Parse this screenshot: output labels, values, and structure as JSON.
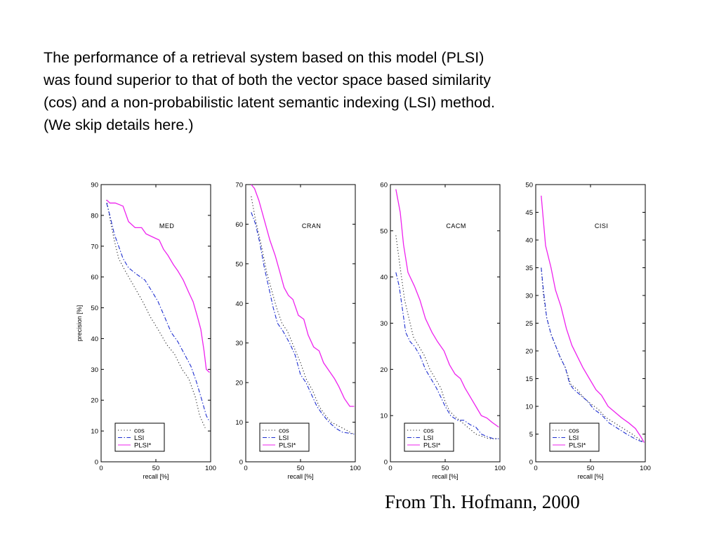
{
  "slide": {
    "paragraph": [
      "The performance of a retrieval system based on this model (PLSI)",
      "was found superior to that of both the vector space based similarity",
      "(cos) and a non-probabilistic latent semantic indexing (LSI) method.",
      "(We skip details here.)"
    ],
    "credit": "From Th. Hofmann, 2000"
  },
  "colors": {
    "cos": "#222222",
    "LSI": "#1f2fd0",
    "PLSI*": "#ee22ee",
    "axis": "#000000"
  },
  "chart_data": [
    {
      "type": "line",
      "title": "MED",
      "xlabel": "recall [%]",
      "ylabel": "precision [%]",
      "xlim": [
        0,
        100
      ],
      "ylim": [
        0,
        90
      ],
      "xticks": [
        "0",
        "50",
        "100"
      ],
      "yticks": [
        "0",
        "10",
        "20",
        "30",
        "40",
        "50",
        "60",
        "70",
        "80",
        "90"
      ],
      "grid": false,
      "legend": "bottom-left",
      "series": [
        {
          "name": "cos",
          "style": "dotted",
          "points": [
            [
              5,
              85
            ],
            [
              8,
              79
            ],
            [
              12,
              72
            ],
            [
              16,
              66
            ],
            [
              22,
              62
            ],
            [
              30,
              57
            ],
            [
              38,
              52
            ],
            [
              45,
              47
            ],
            [
              52,
              43
            ],
            [
              60,
              38
            ],
            [
              67,
              35
            ],
            [
              74,
              30
            ],
            [
              80,
              27
            ],
            [
              86,
              21
            ],
            [
              90,
              15
            ],
            [
              95,
              11
            ]
          ]
        },
        {
          "name": "LSI",
          "style": "dashdot",
          "points": [
            [
              5,
              84
            ],
            [
              8,
              80
            ],
            [
              12,
              74
            ],
            [
              16,
              70
            ],
            [
              20,
              66
            ],
            [
              25,
              63
            ],
            [
              32,
              61
            ],
            [
              40,
              59
            ],
            [
              47,
              55
            ],
            [
              52,
              52
            ],
            [
              58,
              47
            ],
            [
              64,
              42
            ],
            [
              70,
              39
            ],
            [
              76,
              35
            ],
            [
              82,
              31
            ],
            [
              87,
              26
            ],
            [
              92,
              20
            ],
            [
              96,
              15
            ],
            [
              99,
              13
            ]
          ]
        },
        {
          "name": "PLSI*",
          "style": "solid",
          "points": [
            [
              5,
              85
            ],
            [
              8,
              84
            ],
            [
              13,
              84
            ],
            [
              20,
              83
            ],
            [
              25,
              78
            ],
            [
              31,
              76
            ],
            [
              37,
              76
            ],
            [
              41,
              74
            ],
            [
              47,
              73
            ],
            [
              53,
              72
            ],
            [
              57,
              69
            ],
            [
              61,
              67
            ],
            [
              66,
              64
            ],
            [
              70,
              62
            ],
            [
              75,
              59
            ],
            [
              80,
              55
            ],
            [
              84,
              52
            ],
            [
              88,
              47
            ],
            [
              91,
              43
            ],
            [
              94,
              36
            ],
            [
              96,
              30
            ],
            [
              99,
              29
            ]
          ]
        }
      ]
    },
    {
      "type": "line",
      "title": "CRAN",
      "xlabel": "recall [%]",
      "ylabel": "",
      "xlim": [
        0,
        100
      ],
      "ylim": [
        0,
        70
      ],
      "xticks": [
        "0",
        "50",
        "100"
      ],
      "yticks": [
        "0",
        "10",
        "20",
        "30",
        "40",
        "50",
        "60",
        "70"
      ],
      "grid": false,
      "legend": "bottom-left",
      "series": [
        {
          "name": "cos",
          "style": "dotted",
          "points": [
            [
              5,
              67
            ],
            [
              9,
              61
            ],
            [
              14,
              55
            ],
            [
              19,
              48
            ],
            [
              24,
              43
            ],
            [
              28,
              39
            ],
            [
              33,
              35
            ],
            [
              38,
              33
            ],
            [
              44,
              29
            ],
            [
              50,
              25
            ],
            [
              55,
              21
            ],
            [
              61,
              18
            ],
            [
              67,
              14
            ],
            [
              72,
              12
            ],
            [
              78,
              10
            ],
            [
              85,
              9
            ],
            [
              92,
              8
            ],
            [
              98,
              7
            ]
          ]
        },
        {
          "name": "LSI",
          "style": "dashdot",
          "points": [
            [
              5,
              63
            ],
            [
              9,
              60
            ],
            [
              13,
              55
            ],
            [
              17,
              49
            ],
            [
              21,
              44
            ],
            [
              25,
              39
            ],
            [
              29,
              35
            ],
            [
              34,
              33
            ],
            [
              40,
              30
            ],
            [
              45,
              27
            ],
            [
              50,
              22
            ],
            [
              55,
              20
            ],
            [
              60,
              17
            ],
            [
              65,
              14
            ],
            [
              70,
              12
            ],
            [
              76,
              10
            ],
            [
              82,
              8.5
            ],
            [
              88,
              7.5
            ],
            [
              95,
              7.2
            ],
            [
              99,
              7
            ]
          ]
        },
        {
          "name": "PLSI*",
          "style": "solid",
          "points": [
            [
              5,
              70
            ],
            [
              8,
              69
            ],
            [
              12,
              66
            ],
            [
              17,
              61
            ],
            [
              22,
              56
            ],
            [
              27,
              52
            ],
            [
              31,
              48
            ],
            [
              35,
              44
            ],
            [
              39,
              42
            ],
            [
              43,
              41
            ],
            [
              48,
              37
            ],
            [
              53,
              36
            ],
            [
              57,
              32
            ],
            [
              62,
              29
            ],
            [
              67,
              28
            ],
            [
              71,
              25
            ],
            [
              76,
              23
            ],
            [
              81,
              21
            ],
            [
              85,
              19
            ],
            [
              90,
              16
            ],
            [
              95,
              14
            ],
            [
              99,
              14
            ]
          ]
        }
      ]
    },
    {
      "type": "line",
      "title": "CACM",
      "xlabel": "recall [%]",
      "ylabel": "",
      "xlim": [
        0,
        100
      ],
      "ylim": [
        0,
        60
      ],
      "xticks": [
        "0",
        "50",
        "100"
      ],
      "yticks": [
        "0",
        "10",
        "20",
        "30",
        "40",
        "50",
        "60"
      ],
      "grid": false,
      "legend": "bottom-left",
      "series": [
        {
          "name": "cos",
          "style": "dotted",
          "points": [
            [
              5,
              49
            ],
            [
              9,
              42
            ],
            [
              13,
              35
            ],
            [
              17,
              31
            ],
            [
              21,
              27
            ],
            [
              26,
              25
            ],
            [
              31,
              23
            ],
            [
              36,
              20
            ],
            [
              41,
              18
            ],
            [
              46,
              16
            ],
            [
              50,
              13
            ],
            [
              54,
              11
            ],
            [
              58,
              10
            ],
            [
              63,
              9
            ],
            [
              68,
              8
            ],
            [
              73,
              7
            ],
            [
              78,
              6
            ],
            [
              84,
              5.5
            ],
            [
              90,
              5
            ],
            [
              97,
              5
            ]
          ]
        },
        {
          "name": "LSI",
          "style": "dashdot",
          "points": [
            [
              5,
              41
            ],
            [
              8,
              38
            ],
            [
              11,
              33
            ],
            [
              14,
              28
            ],
            [
              18,
              26
            ],
            [
              22,
              25
            ],
            [
              27,
              23
            ],
            [
              32,
              20
            ],
            [
              37,
              18
            ],
            [
              42,
              16
            ],
            [
              46,
              14
            ],
            [
              50,
              12
            ],
            [
              55,
              10
            ],
            [
              61,
              9
            ],
            [
              67,
              9
            ],
            [
              73,
              8
            ],
            [
              78,
              7.5
            ],
            [
              83,
              6
            ],
            [
              88,
              5.5
            ],
            [
              94,
              5
            ],
            [
              99,
              5
            ]
          ]
        },
        {
          "name": "PLSI*",
          "style": "solid",
          "points": [
            [
              5,
              59
            ],
            [
              9,
              54
            ],
            [
              12,
              47
            ],
            [
              16,
              41
            ],
            [
              22,
              38
            ],
            [
              27,
              35
            ],
            [
              32,
              31
            ],
            [
              38,
              28
            ],
            [
              43,
              26
            ],
            [
              49,
              24
            ],
            [
              54,
              21
            ],
            [
              59,
              19
            ],
            [
              64,
              18
            ],
            [
              68,
              16
            ],
            [
              73,
              14
            ],
            [
              78,
              12
            ],
            [
              83,
              10
            ],
            [
              88,
              9.5
            ],
            [
              93,
              8.5
            ],
            [
              99,
              7.5
            ]
          ]
        }
      ]
    },
    {
      "type": "line",
      "title": "CISI",
      "xlabel": "recall [%]",
      "ylabel": "",
      "xlim": [
        0,
        100
      ],
      "ylim": [
        0,
        50
      ],
      "xticks": [
        "0",
        "50",
        "100"
      ],
      "yticks": [
        "0",
        "5",
        "10",
        "15",
        "20",
        "25",
        "30",
        "35",
        "40",
        "45",
        "50"
      ],
      "grid": false,
      "legend": "bottom-left",
      "series": [
        {
          "name": "cos",
          "style": "dotted",
          "points": [
            [
              5,
              35
            ],
            [
              7,
              30
            ],
            [
              10,
              26
            ],
            [
              14,
              23
            ],
            [
              18,
              21
            ],
            [
              22,
              19
            ],
            [
              27,
              17
            ],
            [
              32,
              14
            ],
            [
              38,
              13
            ],
            [
              44,
              11.5
            ],
            [
              50,
              10.5
            ],
            [
              57,
              9.5
            ],
            [
              64,
              8
            ],
            [
              72,
              7
            ],
            [
              80,
              6
            ],
            [
              88,
              5
            ],
            [
              95,
              4
            ],
            [
              99,
              3.5
            ]
          ]
        },
        {
          "name": "LSI",
          "style": "dashdot",
          "points": [
            [
              5,
              35
            ],
            [
              7,
              31
            ],
            [
              10,
              26
            ],
            [
              14,
              23
            ],
            [
              18,
              21
            ],
            [
              22,
              19
            ],
            [
              27,
              17
            ],
            [
              31,
              14
            ],
            [
              35,
              13
            ],
            [
              41,
              12
            ],
            [
              47,
              11
            ],
            [
              53,
              9.5
            ],
            [
              60,
              8.5
            ],
            [
              67,
              7
            ],
            [
              75,
              6
            ],
            [
              83,
              5
            ],
            [
              92,
              4
            ],
            [
              99,
              3.5
            ]
          ]
        },
        {
          "name": "PLSI*",
          "style": "solid",
          "points": [
            [
              5,
              48
            ],
            [
              9,
              39
            ],
            [
              14,
              35
            ],
            [
              18,
              31
            ],
            [
              23,
              28
            ],
            [
              28,
              24
            ],
            [
              33,
              21
            ],
            [
              38,
              19
            ],
            [
              43,
              17
            ],
            [
              49,
              15
            ],
            [
              55,
              13
            ],
            [
              60,
              12
            ],
            [
              66,
              10
            ],
            [
              72,
              9
            ],
            [
              78,
              8
            ],
            [
              85,
              7
            ],
            [
              91,
              6
            ],
            [
              96,
              4.5
            ],
            [
              99,
              3.5
            ]
          ]
        }
      ]
    }
  ]
}
